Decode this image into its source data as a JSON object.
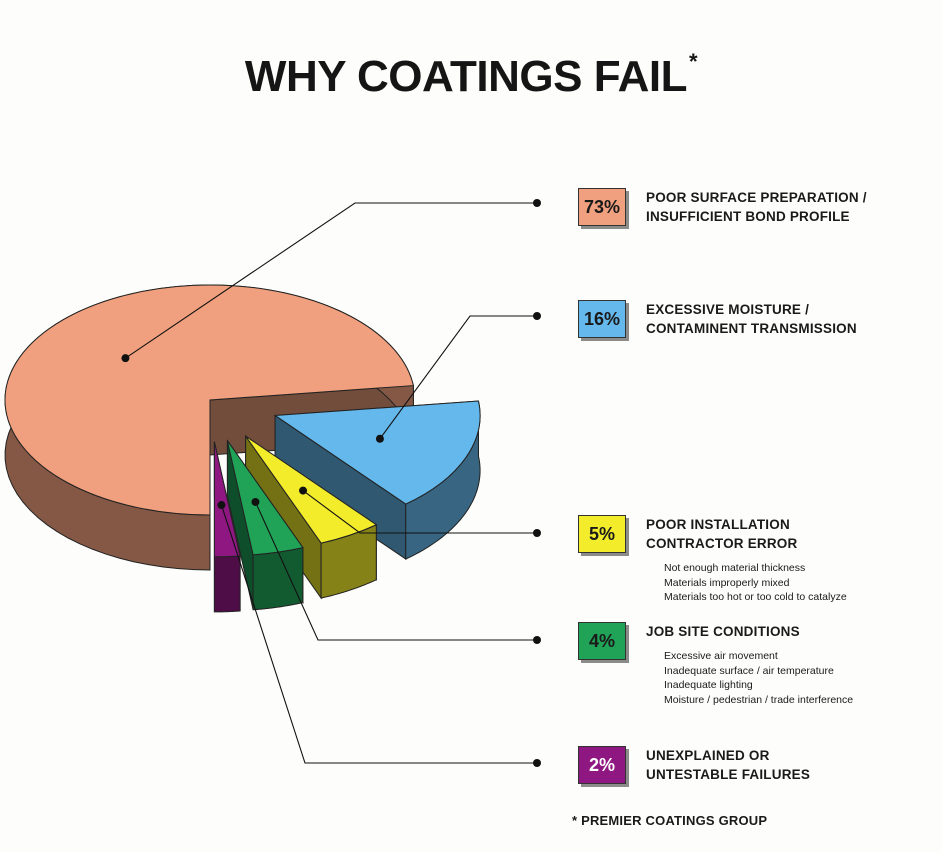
{
  "title": "WHY COATINGS FAIL",
  "title_marker": "*",
  "source_note": "* PREMIER COATINGS GROUP",
  "chart_data": {
    "type": "pie",
    "title": "WHY COATINGS FAIL*",
    "legend_position": "right",
    "slices": [
      {
        "label": "POOR SURFACE PREPARATION / INSUFFICIENT BOND PROFILE",
        "value": 73,
        "color": "#f0a07e"
      },
      {
        "label": "EXCESSIVE MOISTURE / CONTAMINENT TRANSMISSION",
        "value": 16,
        "color": "#64b8ec"
      },
      {
        "label": "POOR INSTALLATION CONTRACTOR ERROR",
        "value": 5,
        "color": "#f2ec2a"
      },
      {
        "label": "JOB SITE CONDITIONS",
        "value": 4,
        "color": "#20a357"
      },
      {
        "label": "UNEXPLAINED OR UNTESTABLE FAILURES",
        "value": 2,
        "color": "#8e1781"
      }
    ]
  },
  "legend": [
    {
      "pct": "73%",
      "label": "POOR SURFACE PREPARATION /\nINSUFFICIENT BOND PROFILE",
      "color": "#f0a07e",
      "notes": []
    },
    {
      "pct": "16%",
      "label": "EXCESSIVE MOISTURE /\nCONTAMINENT TRANSMISSION",
      "color": "#64b8ec",
      "notes": []
    },
    {
      "pct": "5%",
      "label": "POOR INSTALLATION\nCONTRACTOR ERROR",
      "color": "#f2ec2a",
      "notes": [
        "Not enough material thickness",
        "Materials improperly mixed",
        "Materials too hot or too cold to catalyze"
      ]
    },
    {
      "pct": "4%",
      "label": "JOB SITE CONDITIONS",
      "color": "#20a357",
      "notes": [
        "Excessive air movement",
        "Inadequate surface / air temperature",
        "Inadequate lighting",
        "Moisture / pedestrian / trade interference"
      ]
    },
    {
      "pct": "2%",
      "label": "UNEXPLAINED OR\nUNTESTABLE FAILURES",
      "color": "#8e1781",
      "notes": []
    }
  ]
}
